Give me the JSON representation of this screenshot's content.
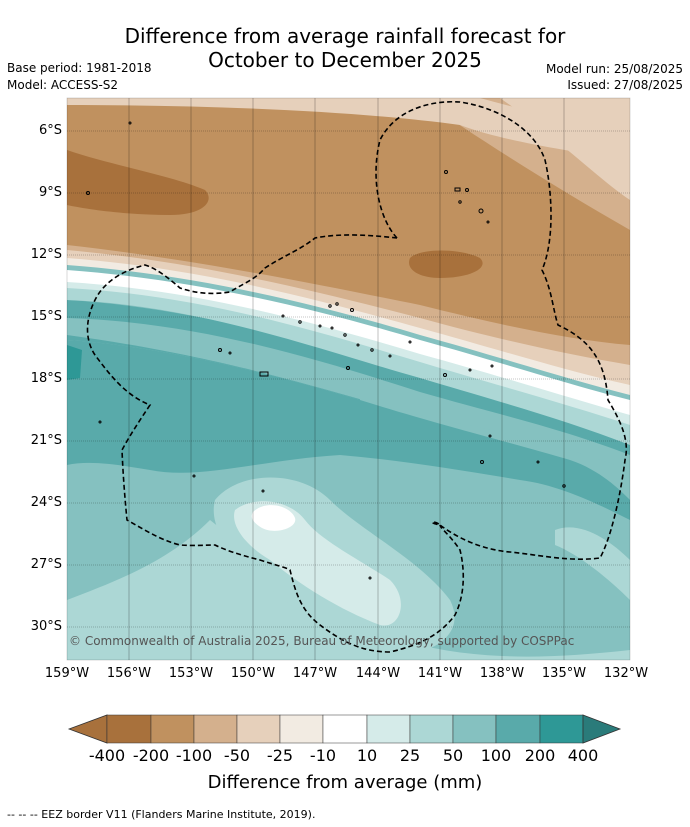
{
  "title_line1": "Difference from average rainfall forecast for",
  "title_line2": "October to December 2025",
  "base_period": "Base period: 1981-2018",
  "model": "Model: ACCESS-S2",
  "model_run": "Model run: 25/08/2025",
  "issued": "Issued: 27/08/2025",
  "latitudes": [
    "6°S",
    "9°S",
    "12°S",
    "15°S",
    "18°S",
    "21°S",
    "24°S",
    "27°S",
    "30°S"
  ],
  "longitudes": [
    "159°W",
    "156°W",
    "153°W",
    "150°W",
    "147°W",
    "144°W",
    "141°W",
    "138°W",
    "135°W",
    "132°W"
  ],
  "copyright": "© Commonwealth of Australia 2025, Bureau of Meteorology, supported by COSPPac",
  "colorbar": {
    "labels": [
      "-400",
      "-200",
      "-100",
      "-50",
      "-25",
      "-10",
      "10",
      "25",
      "50",
      "100",
      "200",
      "400"
    ],
    "colors": [
      "#a8713c",
      "#c0915f",
      "#d4b08d",
      "#e6d0bb",
      "#f2ebe2",
      "#ffffff",
      "#d5ebe9",
      "#acd7d5",
      "#85c1c0",
      "#59aaaa",
      "#2e9896",
      "#2a7b7a"
    ],
    "title": "Difference from average (mm)"
  },
  "legend_note": "-- -- -- EEZ border V11 (Flanders Marine Institute, 2019)."
}
